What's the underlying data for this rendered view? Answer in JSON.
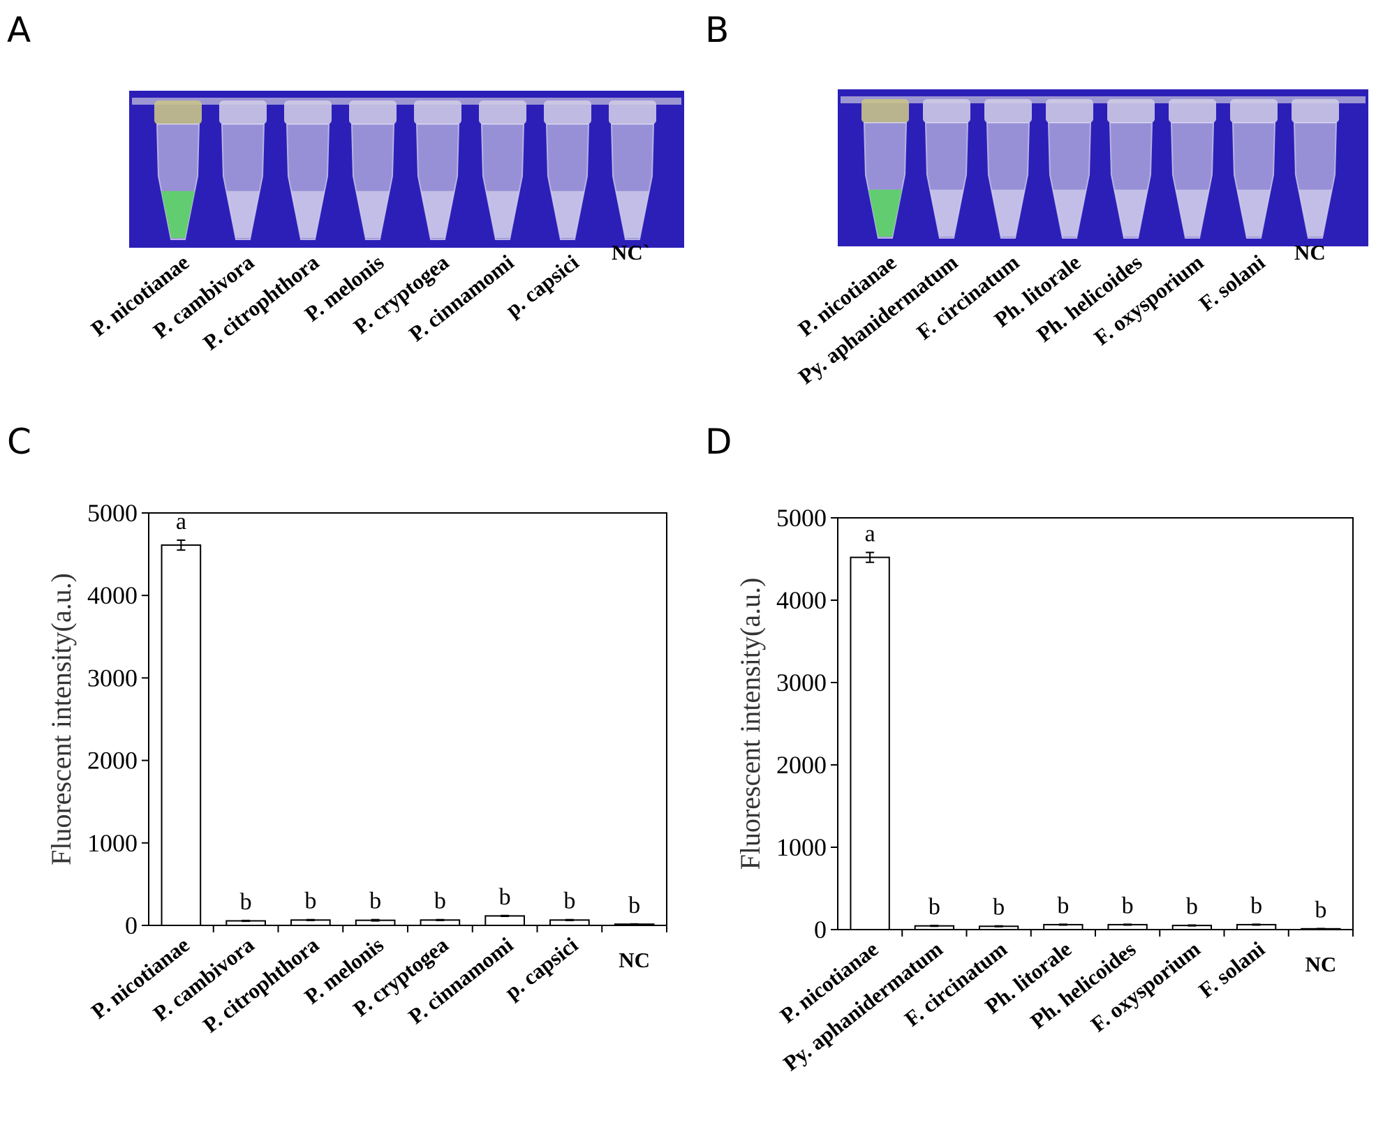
{
  "panels": {
    "a": {
      "letter": "A"
    },
    "b": {
      "letter": "B"
    },
    "c": {
      "letter": "C"
    },
    "d": {
      "letter": "D"
    }
  },
  "photo_a": {
    "tubes": [
      "P. nicotianae",
      "P. cambivora",
      "P. citrophthora",
      "P. melonis",
      "P. cryptogea",
      "P. cinnamomi",
      "p. capsici",
      "NC`"
    ],
    "positive_index": 0,
    "background_color": "#2c1fb8",
    "positive_color": "#5fd16a"
  },
  "photo_b": {
    "tubes": [
      "P. nicotianae",
      "Py. aphanidermatum",
      "F. circinatum",
      "Ph. litorale",
      "Ph. helicoides",
      "F. oxysporium",
      "F. solani",
      "NC"
    ],
    "positive_index": 0,
    "background_color": "#2c1fb8",
    "positive_color": "#5fd16a"
  },
  "chart_data": [
    {
      "type": "bar",
      "panel": "C",
      "categories": [
        "P. nicotianae",
        "P. cambivora",
        "P. citrophthora",
        "P. melonis",
        "P. cryptogea",
        "P. cinnamomi",
        "p. capsici",
        "NC"
      ],
      "values": [
        4610,
        55,
        65,
        62,
        65,
        115,
        65,
        15
      ],
      "errors": [
        60,
        5,
        5,
        8,
        5,
        5,
        5,
        3
      ],
      "significance": [
        "a",
        "b",
        "b",
        "b",
        "b",
        "b",
        "b",
        "b"
      ],
      "ylabel": "Fluorescent intensity(a.u.)",
      "ylim": [
        0,
        5000
      ],
      "yticks": [
        0,
        1000,
        2000,
        3000,
        4000,
        5000
      ],
      "grid": false
    },
    {
      "type": "bar",
      "panel": "D",
      "categories": [
        "P. nicotianae",
        "Py. aphanidermatum",
        "F. circinatum",
        "Ph. litorale",
        "Ph. helicoides",
        "F. oxysporium",
        "F. solani",
        "NC"
      ],
      "values": [
        4520,
        45,
        40,
        60,
        60,
        50,
        60,
        10
      ],
      "errors": [
        60,
        5,
        5,
        5,
        5,
        5,
        5,
        3
      ],
      "significance": [
        "a",
        "b",
        "b",
        "b",
        "b",
        "b",
        "b",
        "b"
      ],
      "ylabel": "Fluorescent intensity(a.u.)",
      "ylim": [
        0,
        5000
      ],
      "yticks": [
        0,
        1000,
        2000,
        3000,
        4000,
        5000
      ],
      "grid": false
    }
  ]
}
